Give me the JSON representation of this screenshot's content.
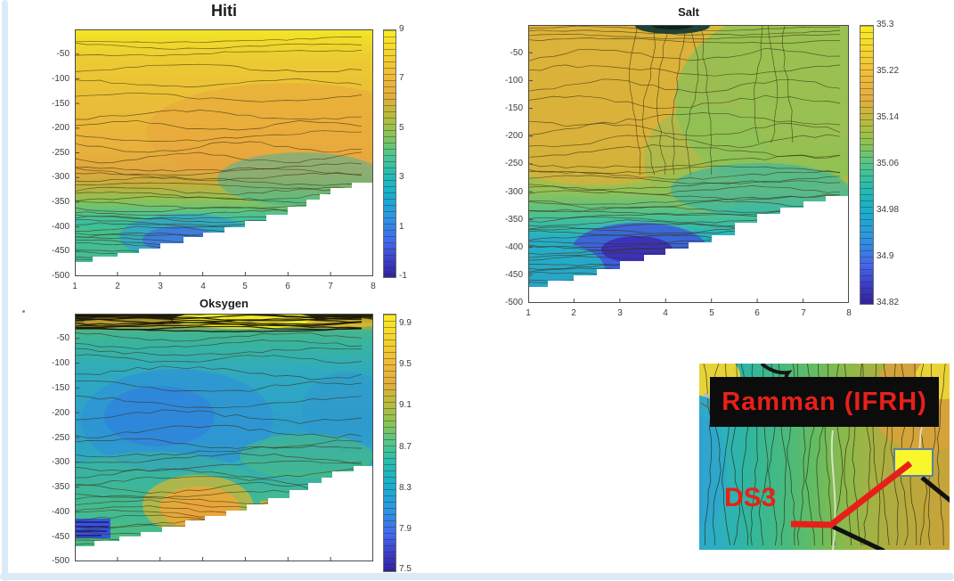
{
  "figure": {
    "background": "#ffffff",
    "frame_color": "#daeaf7",
    "colormap": "parula",
    "accent_red": "#e8201a",
    "marker_yellow": "#f8f72b"
  },
  "plots": {
    "hiti": {
      "title": "Hiti",
      "yticks": [
        "-50",
        "-100",
        "-150",
        "-200",
        "-250",
        "-300",
        "-350",
        "-400",
        "-450",
        "-500"
      ],
      "xticks": [
        "1",
        "2",
        "3",
        "4",
        "5",
        "6",
        "7",
        "8"
      ],
      "colorbar_ticks": [
        "9",
        "7",
        "5",
        "3",
        "1",
        "-1"
      ]
    },
    "salt": {
      "title": "Salt",
      "yticks": [
        "-50",
        "-100",
        "-150",
        "-200",
        "-250",
        "-300",
        "-350",
        "-400",
        "-450",
        "-500"
      ],
      "xticks": [
        "1",
        "2",
        "3",
        "4",
        "5",
        "6",
        "7",
        "8"
      ],
      "colorbar_ticks": [
        "35.3",
        "35.22",
        "35.14",
        "35.06",
        "34.98",
        "34.9",
        "34.82"
      ]
    },
    "oksygen": {
      "title": "Oksygen",
      "yticks": [
        "-50",
        "-100",
        "-150",
        "-200",
        "-250",
        "-300",
        "-350",
        "-400",
        "-450",
        "-500"
      ],
      "colorbar_ticks": [
        "9.9",
        "9.5",
        "9.1",
        "8.7",
        "8.3",
        "7.9",
        "7.5"
      ]
    }
  },
  "map_inset": {
    "banner_label": "Ramman (IFRH)",
    "station_label": "DS3",
    "label_color": "#e8201a",
    "track_color": "#e8201a",
    "marker_fill": "#f8f72b",
    "banner_background": "#0c0c0c"
  },
  "chart_data": [
    {
      "type": "contour",
      "title": "Hiti",
      "xlim": [
        1,
        8
      ],
      "ylim": [
        -500,
        0
      ],
      "xticks": [
        1,
        2,
        3,
        4,
        5,
        6,
        7,
        8
      ],
      "yticks": [
        -50,
        -100,
        -150,
        -200,
        -250,
        -300,
        -350,
        -400,
        -450,
        -500
      ],
      "colormap": "parula",
      "colorbar_ticks": [
        9,
        7,
        5,
        3,
        1,
        -1
      ],
      "colorbar_range": [
        -1,
        9
      ],
      "seafloor_depth_by_station": [
        -470,
        -455,
        -437,
        -413,
        -397,
        -367,
        -330,
        -312
      ],
      "features": "warm 8-9 surface layer, 6-7.5 between 100-250 m, sharp thermocline 250-400 m, cold 1-3 pocket near bottom at stations 2-4.5, white seafloor mask rising from -470 m (st 1) to -310 m (st 8)"
    },
    {
      "type": "contour",
      "title": "Salt",
      "xlim": [
        1,
        8
      ],
      "ylim": [
        -500,
        0
      ],
      "xticks": [
        1,
        2,
        3,
        4,
        5,
        6,
        7,
        8
      ],
      "yticks": [
        -50,
        -100,
        -150,
        -200,
        -250,
        -300,
        -350,
        -400,
        -450,
        -500
      ],
      "colormap": "parula",
      "colorbar_ticks": [
        35.3,
        35.22,
        35.14,
        35.06,
        34.98,
        34.9,
        34.82
      ],
      "colorbar_range": [
        34.82,
        35.3
      ],
      "seafloor_depth_by_station": [
        -470,
        -455,
        -437,
        -413,
        -397,
        -367,
        -330,
        -310
      ],
      "features": "saline 35.2-35.24 upper layer at stations 1-4, fresher 35.12-35.16 upper layer at stations 5-8, small 35.1 minimum blob at surface near station 4, halocline 250-350 m, 34.85-34.9 minimum near bottom at stations 3-5, 35.0-35.05 near bottom at station 1"
    },
    {
      "type": "contour",
      "title": "Oksygen",
      "xlim": [
        1,
        8
      ],
      "ylim": [
        -500,
        0
      ],
      "yticks": [
        -50,
        -100,
        -150,
        -200,
        -250,
        -300,
        -350,
        -400,
        -450,
        -500
      ],
      "colormap": "parula",
      "colorbar_ticks": [
        9.9,
        9.5,
        9.1,
        8.7,
        8.3,
        7.9,
        7.5
      ],
      "colorbar_range": [
        7.5,
        10.0
      ],
      "seafloor_depth_by_station": [
        -470,
        -455,
        -437,
        -413,
        -397,
        -367,
        -330,
        -312
      ],
      "features": "thin 9.5-9.9 surface band with dense dark contours, 8.8-9.1 upper layer, 8.3-8.6 minimum 150-300 m centered at stations 2-5, 9.3-9.6 maximum near bottom at stations 3-4.5, <7.9 striped pocket near bottom at station 1"
    },
    {
      "type": "map",
      "title": "Ramman (IFRH)",
      "station": "DS3",
      "description": "bathymetric contour inset, depth shading cyan (west) to olive/orange (east), red survey track from DS3 to yellow station box, black cable lines"
    }
  ]
}
